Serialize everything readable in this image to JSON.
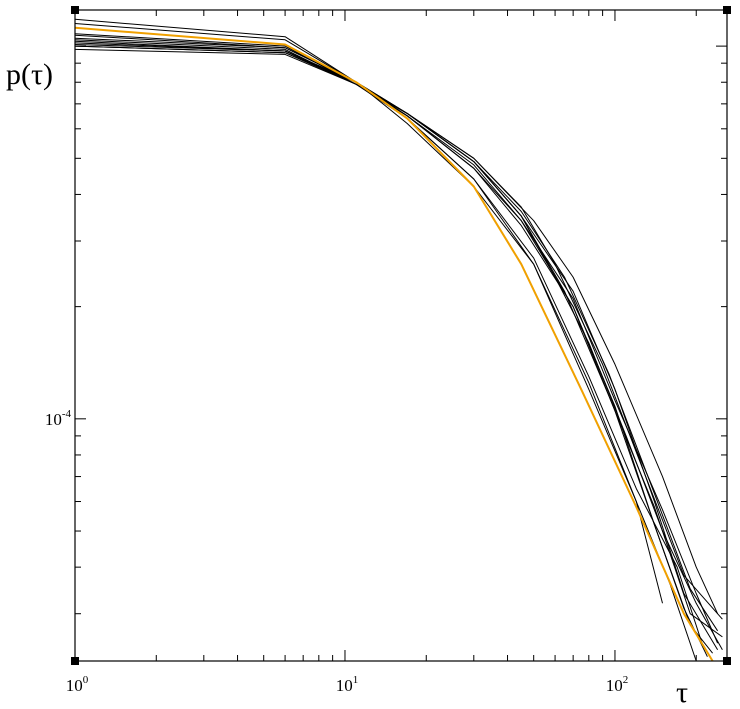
{
  "chart_data": {
    "type": "line",
    "title": "",
    "xlabel": "τ",
    "ylabel": "p(τ)",
    "xscale": "log",
    "yscale": "log",
    "xlim": [
      1,
      260
    ],
    "ylim": [
      2.24e-05,
      0.00125
    ],
    "grid": false,
    "legend": "none",
    "x_ticks": [
      {
        "value": 1,
        "base": "10",
        "exp": "0"
      },
      {
        "value": 10,
        "base": "10",
        "exp": "1"
      },
      {
        "value": 100,
        "base": "10",
        "exp": "2"
      }
    ],
    "y_ticks": [
      {
        "value": 0.0001,
        "base": "10",
        "exp": "-4"
      }
    ],
    "colors": {
      "highlight": "#f0a000",
      "series": "#000000"
    },
    "series": [
      {
        "color": "#f0a000",
        "x": [
          1,
          6,
          11,
          17,
          30,
          45,
          75,
          120,
          180,
          230
        ],
        "y": [
          0.00112,
          0.00101,
          0.0008,
          0.00064,
          0.00042,
          0.00026,
          0.00012,
          5.8e-05,
          3e-05,
          2.24e-05
        ]
      },
      {
        "color": "#000000",
        "x": [
          1,
          6,
          11,
          17,
          30,
          50,
          80,
          120,
          160,
          200
        ],
        "y": [
          0.00115,
          0.00104,
          0.0008,
          0.00062,
          0.00042,
          0.00026,
          0.000125,
          6e-05,
          3.6e-05,
          2.24e-05
        ]
      },
      {
        "color": "#000000",
        "x": [
          1,
          6,
          11,
          17,
          30,
          50,
          80,
          120,
          170,
          210
        ],
        "y": [
          0.00118,
          0.00106,
          0.0008,
          0.00064,
          0.00044,
          0.00027,
          0.00013,
          6.5e-05,
          4e-05,
          2.5e-05
        ]
      },
      {
        "color": "#000000",
        "x": [
          1,
          6,
          11,
          17,
          30,
          50,
          80,
          120,
          150
        ],
        "y": [
          0.00108,
          0.001,
          0.00079,
          0.00064,
          0.00044,
          0.00026,
          0.00012,
          6e-05,
          3.2e-05
        ]
      },
      {
        "color": "#000000",
        "x": [
          1,
          6,
          11,
          17,
          30,
          45,
          60,
          90,
          130,
          180,
          250
        ],
        "y": [
          0.001,
          0.00096,
          0.00079,
          0.00066,
          0.0005,
          0.00037,
          0.00026,
          0.00014,
          7e-05,
          3.8e-05,
          2.9e-05
        ]
      },
      {
        "color": "#000000",
        "x": [
          1,
          6,
          11,
          17,
          30,
          50,
          70,
          100,
          150,
          200,
          240
        ],
        "y": [
          0.00098,
          0.00095,
          0.00079,
          0.00066,
          0.0005,
          0.00034,
          0.00024,
          0.00014,
          7e-05,
          4e-05,
          3e-05
        ]
      },
      {
        "color": "#000000",
        "x": [
          1,
          6,
          11,
          17,
          30,
          45,
          65,
          95,
          140,
          190,
          240
        ],
        "y": [
          0.00102,
          0.00097,
          0.00079,
          0.00066,
          0.00049,
          0.00036,
          0.00024,
          0.000132,
          6.3e-05,
          3.5e-05,
          2.7e-05
        ]
      },
      {
        "color": "#000000",
        "x": [
          1,
          6,
          11,
          17,
          30,
          45,
          70,
          100,
          150,
          200,
          240
        ],
        "y": [
          0.00104,
          0.00098,
          0.00079,
          0.00065,
          0.00048,
          0.00034,
          0.00021,
          0.000112,
          5.7e-05,
          3.4e-05,
          2.5e-05
        ]
      },
      {
        "color": "#000000",
        "x": [
          1,
          6,
          11,
          17,
          30,
          45,
          70,
          100,
          140,
          180,
          220
        ],
        "y": [
          0.00105,
          0.00099,
          0.0008,
          0.00065,
          0.00047,
          0.00033,
          0.0002,
          0.000105,
          5.2e-05,
          3.1e-05,
          2.3e-05
        ]
      },
      {
        "color": "#000000",
        "x": [
          1,
          6,
          11,
          17,
          30,
          45,
          65,
          95,
          140,
          190,
          250
        ],
        "y": [
          0.00101,
          0.00097,
          0.0008,
          0.00066,
          0.00049,
          0.00035,
          0.00022,
          0.000115,
          5.8e-05,
          3e-05,
          2.6e-05
        ]
      },
      {
        "color": "#000000",
        "x": [
          1,
          6,
          11,
          17,
          30,
          45,
          70,
          100,
          140,
          190,
          230
        ],
        "y": [
          0.00107,
          0.00099,
          0.0008,
          0.00065,
          0.00047,
          0.00034,
          0.0002,
          0.000108,
          5.2e-05,
          2.8e-05,
          2.35e-05
        ]
      },
      {
        "color": "#000000",
        "x": [
          1,
          6,
          11,
          17,
          30,
          45,
          60,
          80,
          110,
          150,
          200,
          250
        ],
        "y": [
          0.00103,
          0.00097,
          0.0008,
          0.00066,
          0.00049,
          0.00035,
          0.00024,
          0.00016,
          9e-05,
          5e-05,
          3.2e-05,
          2.4e-05
        ]
      },
      {
        "color": "#000000",
        "x": [
          1,
          6,
          11,
          17,
          30,
          45,
          70,
          100,
          140,
          180,
          240
        ],
        "y": [
          0.001,
          0.00096,
          0.0008,
          0.00066,
          0.00049,
          0.00035,
          0.00022,
          0.00012,
          6e-05,
          3.4e-05,
          2.4e-05
        ]
      }
    ]
  }
}
